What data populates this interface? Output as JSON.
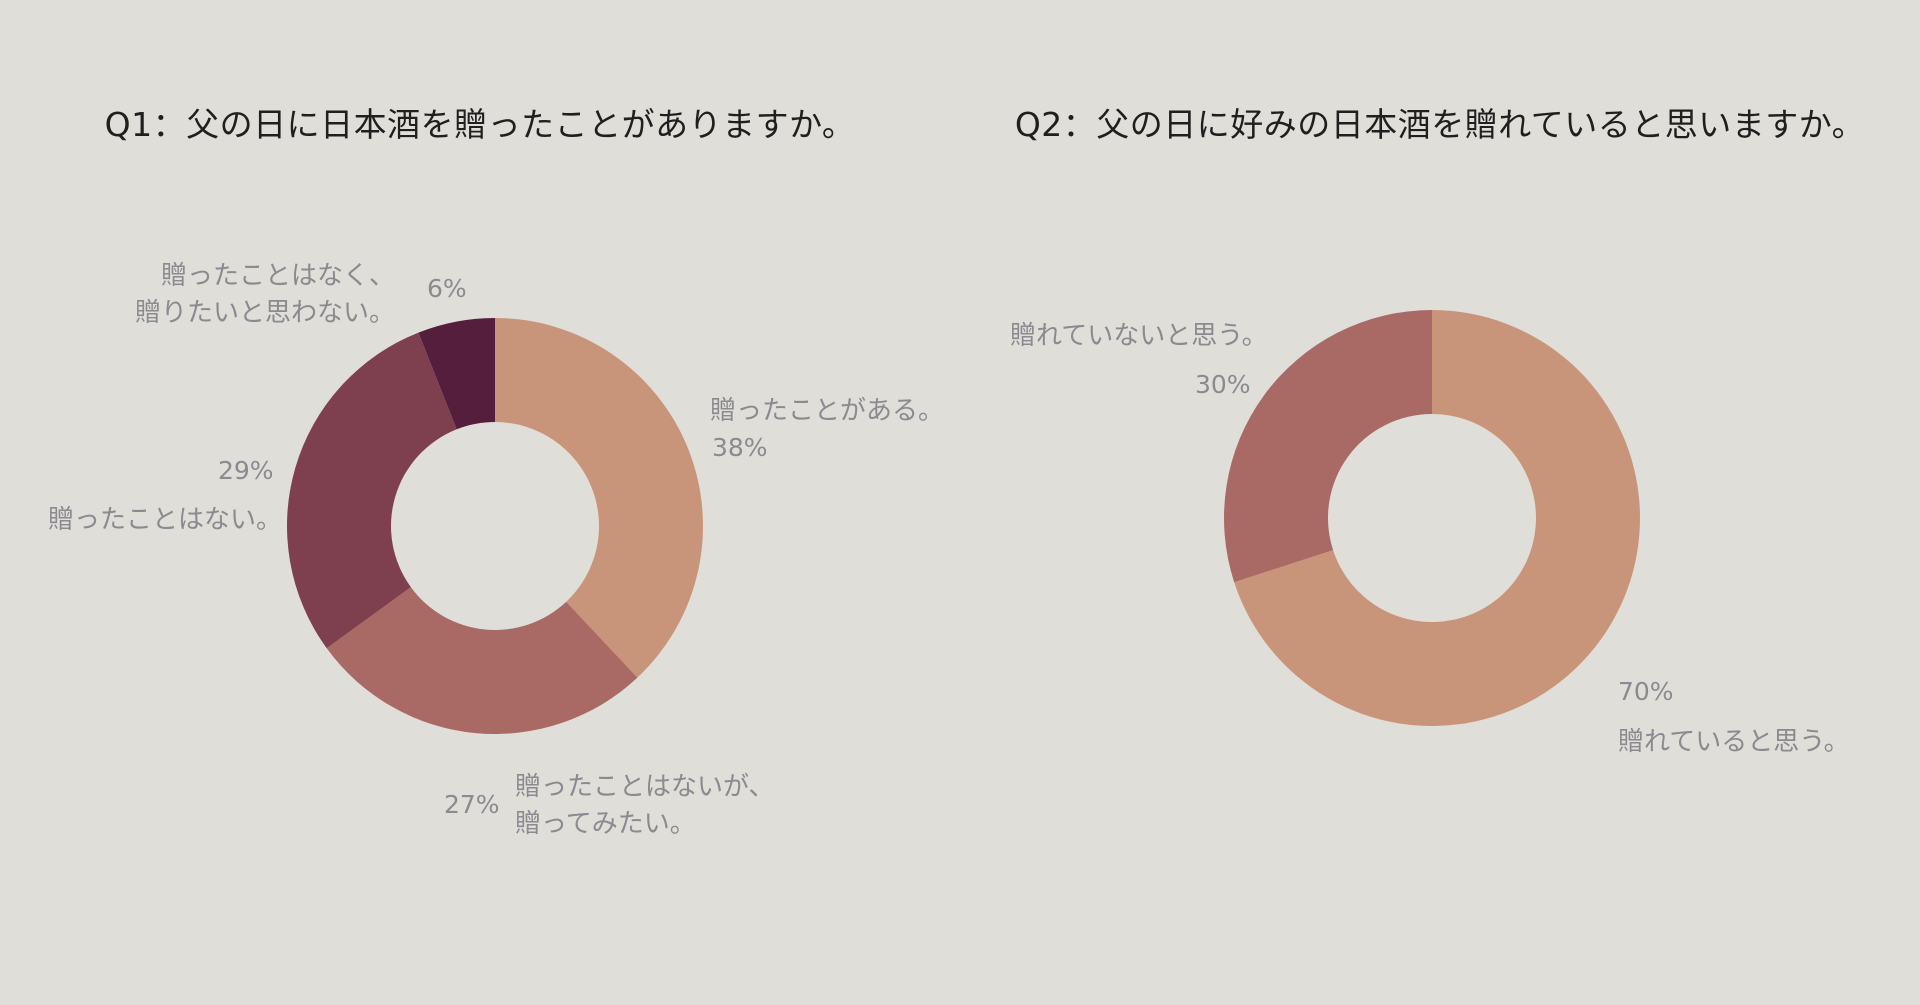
{
  "chart_data": [
    {
      "type": "pie",
      "title": "Q1：父の日に日本酒を贈ったことがありますか。",
      "slices": [
        {
          "label_lines": [
            "贈ったことがある。"
          ],
          "value": 38,
          "value_label": "38%",
          "color": "#c9957a"
        },
        {
          "label_lines": [
            "贈ったことはないが、",
            "贈ってみたい。"
          ],
          "value": 27,
          "value_label": "27%",
          "color": "#a96a66"
        },
        {
          "label_lines": [
            "贈ったことはない。"
          ],
          "value": 29,
          "value_label": "29%",
          "color": "#7e404f"
        },
        {
          "label_lines": [
            "贈ったことはなく、",
            "贈りたいと思わない。"
          ],
          "value": 6,
          "value_label": "6%",
          "color": "#561e3d"
        }
      ]
    },
    {
      "type": "pie",
      "title": "Q2：父の日に好みの日本酒を贈れていると思いますか。",
      "slices": [
        {
          "label_lines": [
            "贈れていると思う。"
          ],
          "value": 70,
          "value_label": "70%",
          "color": "#c9957a"
        },
        {
          "label_lines": [
            "贈れていないと思う。"
          ],
          "value": 30,
          "value_label": "30%",
          "color": "#a96a66"
        }
      ]
    }
  ]
}
